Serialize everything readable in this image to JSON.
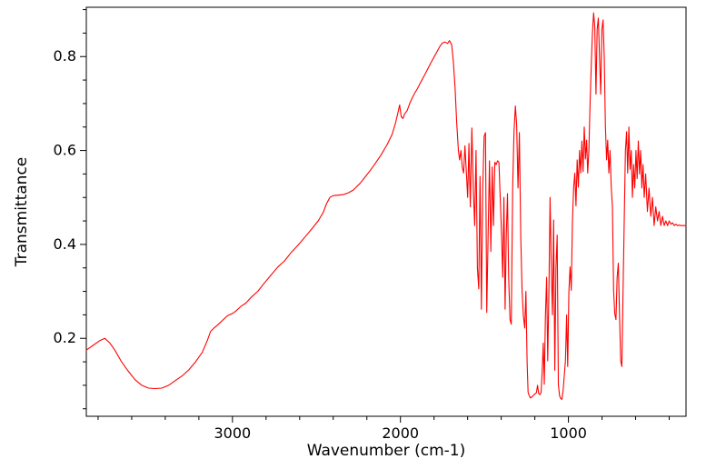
{
  "chart_data": {
    "type": "line",
    "title": "",
    "xlabel": "Wavenumber (cm-1)",
    "ylabel": "Transmittance",
    "line_color": "#ff0000",
    "frame_color": "#000000",
    "background": "#ffffff",
    "grid": false,
    "legend": "none",
    "x_axis_reversed": true,
    "xlim": [
      3870,
      300
    ],
    "ylim": [
      0.034,
      0.905
    ],
    "x_ticks": [
      3000,
      2000,
      1000
    ],
    "y_ticks": [
      0.2,
      0.4,
      0.6,
      0.8
    ],
    "x_minor_step": 200,
    "y_minor_step": 0.05,
    "points": [
      [
        3870,
        0.175
      ],
      [
        3830,
        0.185
      ],
      [
        3790,
        0.195
      ],
      [
        3760,
        0.2
      ],
      [
        3730,
        0.19
      ],
      [
        3700,
        0.175
      ],
      [
        3660,
        0.15
      ],
      [
        3620,
        0.13
      ],
      [
        3580,
        0.112
      ],
      [
        3540,
        0.1
      ],
      [
        3500,
        0.094
      ],
      [
        3460,
        0.093
      ],
      [
        3420,
        0.094
      ],
      [
        3380,
        0.1
      ],
      [
        3340,
        0.11
      ],
      [
        3300,
        0.12
      ],
      [
        3260,
        0.133
      ],
      [
        3220,
        0.15
      ],
      [
        3180,
        0.17
      ],
      [
        3150,
        0.195
      ],
      [
        3130,
        0.215
      ],
      [
        3110,
        0.222
      ],
      [
        3090,
        0.228
      ],
      [
        3060,
        0.238
      ],
      [
        3030,
        0.248
      ],
      [
        3000,
        0.253
      ],
      [
        2980,
        0.258
      ],
      [
        2950,
        0.268
      ],
      [
        2920,
        0.275
      ],
      [
        2890,
        0.287
      ],
      [
        2850,
        0.3
      ],
      [
        2810,
        0.318
      ],
      [
        2770,
        0.335
      ],
      [
        2730,
        0.352
      ],
      [
        2690,
        0.365
      ],
      [
        2650,
        0.383
      ],
      [
        2610,
        0.398
      ],
      [
        2570,
        0.415
      ],
      [
        2530,
        0.432
      ],
      [
        2490,
        0.45
      ],
      [
        2460,
        0.468
      ],
      [
        2440,
        0.487
      ],
      [
        2420,
        0.5
      ],
      [
        2400,
        0.504
      ],
      [
        2370,
        0.505
      ],
      [
        2340,
        0.506
      ],
      [
        2310,
        0.51
      ],
      [
        2280,
        0.516
      ],
      [
        2240,
        0.53
      ],
      [
        2200,
        0.548
      ],
      [
        2160,
        0.567
      ],
      [
        2120,
        0.588
      ],
      [
        2080,
        0.612
      ],
      [
        2050,
        0.634
      ],
      [
        2030,
        0.658
      ],
      [
        2015,
        0.68
      ],
      [
        2005,
        0.697
      ],
      [
        1995,
        0.672
      ],
      [
        1985,
        0.668
      ],
      [
        1975,
        0.678
      ],
      [
        1960,
        0.685
      ],
      [
        1945,
        0.7
      ],
      [
        1930,
        0.712
      ],
      [
        1915,
        0.722
      ],
      [
        1900,
        0.731
      ],
      [
        1880,
        0.745
      ],
      [
        1860,
        0.758
      ],
      [
        1840,
        0.772
      ],
      [
        1820,
        0.786
      ],
      [
        1800,
        0.799
      ],
      [
        1780,
        0.812
      ],
      [
        1765,
        0.822
      ],
      [
        1750,
        0.829
      ],
      [
        1735,
        0.831
      ],
      [
        1720,
        0.828
      ],
      [
        1708,
        0.834
      ],
      [
        1695,
        0.825
      ],
      [
        1685,
        0.79
      ],
      [
        1675,
        0.735
      ],
      [
        1665,
        0.66
      ],
      [
        1655,
        0.6
      ],
      [
        1648,
        0.58
      ],
      [
        1640,
        0.6
      ],
      [
        1632,
        0.565
      ],
      [
        1624,
        0.552
      ],
      [
        1616,
        0.61
      ],
      [
        1608,
        0.555
      ],
      [
        1600,
        0.5
      ],
      [
        1592,
        0.615
      ],
      [
        1584,
        0.48
      ],
      [
        1575,
        0.648
      ],
      [
        1566,
        0.52
      ],
      [
        1558,
        0.44
      ],
      [
        1550,
        0.6
      ],
      [
        1542,
        0.35
      ],
      [
        1534,
        0.305
      ],
      [
        1526,
        0.545
      ],
      [
        1518,
        0.262
      ],
      [
        1510,
        0.52
      ],
      [
        1502,
        0.63
      ],
      [
        1494,
        0.638
      ],
      [
        1486,
        0.255
      ],
      [
        1478,
        0.42
      ],
      [
        1470,
        0.578
      ],
      [
        1462,
        0.385
      ],
      [
        1454,
        0.565
      ],
      [
        1446,
        0.44
      ],
      [
        1438,
        0.575
      ],
      [
        1430,
        0.57
      ],
      [
        1422,
        0.578
      ],
      [
        1414,
        0.575
      ],
      [
        1406,
        0.5
      ],
      [
        1398,
        0.42
      ],
      [
        1391,
        0.33
      ],
      [
        1384,
        0.5
      ],
      [
        1377,
        0.262
      ],
      [
        1370,
        0.42
      ],
      [
        1363,
        0.508
      ],
      [
        1356,
        0.33
      ],
      [
        1348,
        0.24
      ],
      [
        1340,
        0.23
      ],
      [
        1332,
        0.52
      ],
      [
        1324,
        0.64
      ],
      [
        1316,
        0.695
      ],
      [
        1308,
        0.655
      ],
      [
        1300,
        0.52
      ],
      [
        1292,
        0.638
      ],
      [
        1284,
        0.42
      ],
      [
        1276,
        0.3
      ],
      [
        1268,
        0.248
      ],
      [
        1260,
        0.222
      ],
      [
        1253,
        0.3
      ],
      [
        1246,
        0.15
      ],
      [
        1240,
        0.085
      ],
      [
        1233,
        0.078
      ],
      [
        1226,
        0.073
      ],
      [
        1219,
        0.075
      ],
      [
        1212,
        0.077
      ],
      [
        1205,
        0.08
      ],
      [
        1198,
        0.082
      ],
      [
        1191,
        0.084
      ],
      [
        1184,
        0.1
      ],
      [
        1177,
        0.082
      ],
      [
        1170,
        0.08
      ],
      [
        1163,
        0.085
      ],
      [
        1156,
        0.13
      ],
      [
        1150,
        0.19
      ],
      [
        1144,
        0.102
      ],
      [
        1137,
        0.25
      ],
      [
        1130,
        0.33
      ],
      [
        1123,
        0.152
      ],
      [
        1116,
        0.3
      ],
      [
        1109,
        0.5
      ],
      [
        1102,
        0.352
      ],
      [
        1095,
        0.25
      ],
      [
        1088,
        0.452
      ],
      [
        1081,
        0.132
      ],
      [
        1074,
        0.352
      ],
      [
        1067,
        0.42
      ],
      [
        1060,
        0.102
      ],
      [
        1053,
        0.078
      ],
      [
        1046,
        0.072
      ],
      [
        1039,
        0.07
      ],
      [
        1032,
        0.088
      ],
      [
        1025,
        0.12
      ],
      [
        1018,
        0.152
      ],
      [
        1011,
        0.25
      ],
      [
        1004,
        0.14
      ],
      [
        997,
        0.3
      ],
      [
        990,
        0.352
      ],
      [
        983,
        0.302
      ],
      [
        976,
        0.45
      ],
      [
        969,
        0.52
      ],
      [
        962,
        0.552
      ],
      [
        955,
        0.482
      ],
      [
        948,
        0.58
      ],
      [
        941,
        0.522
      ],
      [
        934,
        0.6
      ],
      [
        927,
        0.552
      ],
      [
        920,
        0.62
      ],
      [
        913,
        0.555
      ],
      [
        906,
        0.65
      ],
      [
        899,
        0.582
      ],
      [
        892,
        0.622
      ],
      [
        885,
        0.552
      ],
      [
        878,
        0.6
      ],
      [
        871,
        0.7
      ],
      [
        864,
        0.78
      ],
      [
        857,
        0.85
      ],
      [
        850,
        0.893
      ],
      [
        843,
        0.862
      ],
      [
        836,
        0.72
      ],
      [
        829,
        0.858
      ],
      [
        822,
        0.882
      ],
      [
        815,
        0.8
      ],
      [
        808,
        0.72
      ],
      [
        801,
        0.858
      ],
      [
        794,
        0.878
      ],
      [
        787,
        0.8
      ],
      [
        780,
        0.65
      ],
      [
        773,
        0.58
      ],
      [
        766,
        0.622
      ],
      [
        759,
        0.552
      ],
      [
        752,
        0.6
      ],
      [
        745,
        0.522
      ],
      [
        738,
        0.48
      ],
      [
        731,
        0.302
      ],
      [
        724,
        0.252
      ],
      [
        717,
        0.24
      ],
      [
        710,
        0.33
      ],
      [
        703,
        0.36
      ],
      [
        696,
        0.252
      ],
      [
        689,
        0.152
      ],
      [
        682,
        0.14
      ],
      [
        675,
        0.3
      ],
      [
        668,
        0.45
      ],
      [
        661,
        0.6
      ],
      [
        654,
        0.64
      ],
      [
        647,
        0.552
      ],
      [
        640,
        0.65
      ],
      [
        633,
        0.56
      ],
      [
        626,
        0.6
      ],
      [
        619,
        0.5
      ],
      [
        612,
        0.57
      ],
      [
        605,
        0.52
      ],
      [
        598,
        0.6
      ],
      [
        591,
        0.54
      ],
      [
        584,
        0.62
      ],
      [
        577,
        0.55
      ],
      [
        570,
        0.6
      ],
      [
        563,
        0.52
      ],
      [
        556,
        0.57
      ],
      [
        549,
        0.5
      ],
      [
        540,
        0.55
      ],
      [
        530,
        0.47
      ],
      [
        520,
        0.52
      ],
      [
        510,
        0.46
      ],
      [
        500,
        0.5
      ],
      [
        490,
        0.44
      ],
      [
        480,
        0.48
      ],
      [
        470,
        0.45
      ],
      [
        460,
        0.47
      ],
      [
        450,
        0.44
      ],
      [
        440,
        0.46
      ],
      [
        430,
        0.44
      ],
      [
        420,
        0.45
      ],
      [
        410,
        0.44
      ],
      [
        400,
        0.45
      ],
      [
        390,
        0.443
      ],
      [
        380,
        0.446
      ],
      [
        370,
        0.44
      ],
      [
        360,
        0.443
      ],
      [
        350,
        0.44
      ],
      [
        340,
        0.441
      ],
      [
        330,
        0.44
      ],
      [
        320,
        0.44
      ],
      [
        310,
        0.44
      ],
      [
        300,
        0.44
      ]
    ]
  }
}
